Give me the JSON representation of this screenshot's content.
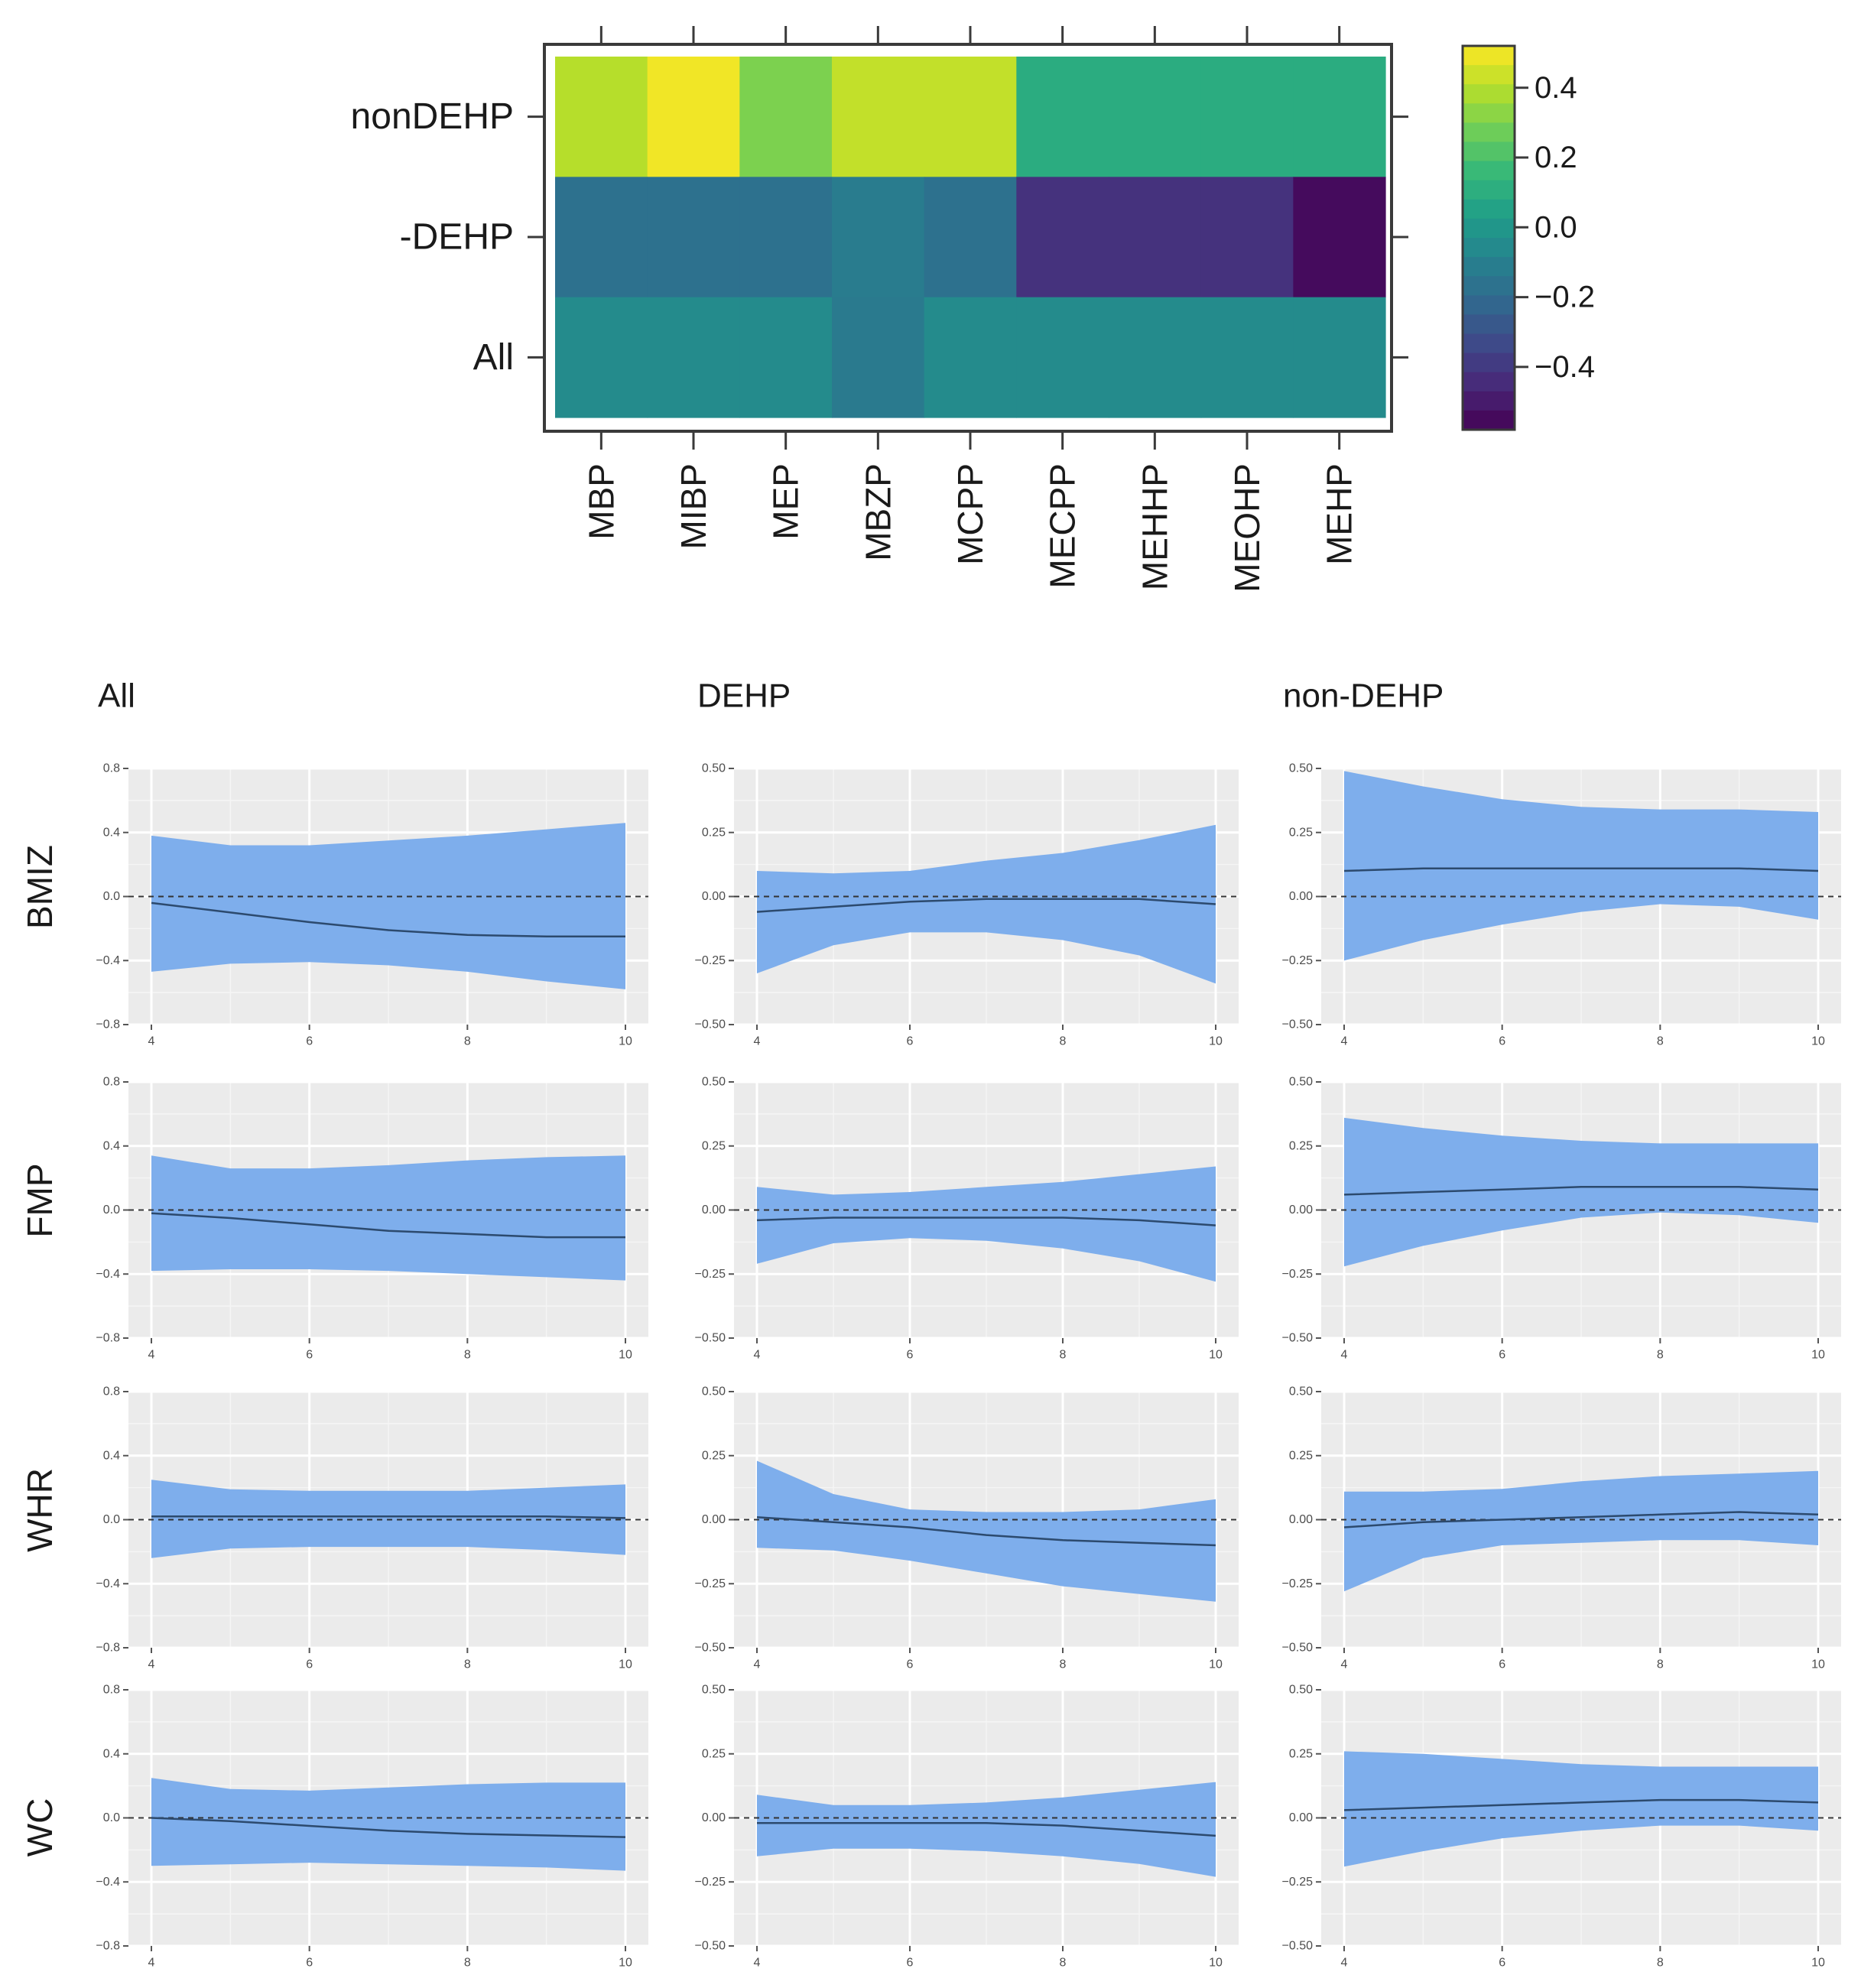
{
  "chart_data": [
    {
      "type": "heatmap",
      "title": "",
      "rows": [
        "nonDEHP",
        "-DEHP",
        "All"
      ],
      "columns": [
        "MBP",
        "MIBP",
        "MEP",
        "MBZP",
        "MCPP",
        "MECPP",
        "MEHHP",
        "MEOHP",
        "MEHP"
      ],
      "values": [
        [
          0.4,
          0.5,
          0.3,
          0.42,
          0.42,
          0.1,
          0.1,
          0.1,
          0.1
        ],
        [
          -0.17,
          -0.17,
          -0.17,
          -0.12,
          -0.17,
          -0.42,
          -0.42,
          -0.42,
          -0.55
        ],
        [
          -0.05,
          -0.05,
          -0.05,
          -0.13,
          -0.05,
          -0.05,
          -0.05,
          -0.05,
          -0.05
        ]
      ],
      "colorbar": {
        "range": [
          -0.58,
          0.52
        ],
        "ticks": [
          0.4,
          0.2,
          0.0,
          -0.2,
          -0.4
        ],
        "tick_labels": [
          "0.4",
          "0.2",
          "0.0",
          "−0.2",
          "−0.4"
        ]
      }
    },
    {
      "type": "area",
      "column_titles": [
        "All",
        "DEHP",
        "non-DEHP"
      ],
      "row_titles": [
        "BMIZ",
        "FMP",
        "WHR",
        "WC"
      ],
      "x_ticks": [
        4,
        6,
        8,
        10
      ],
      "x_tick_labels": [
        "4",
        "6",
        "8",
        "10"
      ],
      "y_axes": [
        {
          "ylim": [
            -0.8,
            0.8
          ],
          "ticks": [
            0.8,
            0.4,
            0.0,
            -0.4,
            -0.8
          ],
          "tick_labels": [
            "0.8",
            "0.4",
            "0.0",
            "−0.4",
            "−0.8"
          ]
        },
        {
          "ylim": [
            -0.5,
            0.5
          ],
          "ticks": [
            0.5,
            0.25,
            0.0,
            -0.25,
            -0.5
          ],
          "tick_labels": [
            "0.50",
            "0.25",
            "0.00",
            "−0.25",
            "−0.50"
          ]
        },
        {
          "ylim": [
            -0.5,
            0.5
          ],
          "ticks": [
            0.5,
            0.25,
            0.0,
            -0.25,
            -0.5
          ],
          "tick_labels": [
            "0.50",
            "0.25",
            "0.00",
            "−0.25",
            "−0.50"
          ]
        }
      ],
      "x": [
        4,
        5,
        6,
        7,
        8,
        9,
        10
      ],
      "panels": [
        [
          {
            "mean": [
              -0.04,
              -0.1,
              -0.16,
              -0.21,
              -0.24,
              -0.25,
              -0.25
            ],
            "upper": [
              0.38,
              0.32,
              0.32,
              0.35,
              0.38,
              0.42,
              0.46
            ],
            "lower": [
              -0.47,
              -0.42,
              -0.41,
              -0.43,
              -0.47,
              -0.53,
              -0.58
            ]
          },
          {
            "mean": [
              -0.06,
              -0.04,
              -0.02,
              -0.01,
              -0.01,
              -0.01,
              -0.03
            ],
            "upper": [
              0.1,
              0.09,
              0.1,
              0.14,
              0.17,
              0.22,
              0.28
            ],
            "lower": [
              -0.3,
              -0.19,
              -0.14,
              -0.14,
              -0.17,
              -0.23,
              -0.34
            ]
          },
          {
            "mean": [
              0.1,
              0.11,
              0.11,
              0.11,
              0.11,
              0.11,
              0.1
            ],
            "upper": [
              0.49,
              0.43,
              0.38,
              0.35,
              0.34,
              0.34,
              0.33
            ],
            "lower": [
              -0.25,
              -0.17,
              -0.11,
              -0.06,
              -0.03,
              -0.04,
              -0.09
            ]
          }
        ],
        [
          {
            "mean": [
              -0.02,
              -0.05,
              -0.09,
              -0.13,
              -0.15,
              -0.17,
              -0.17
            ],
            "upper": [
              0.34,
              0.26,
              0.26,
              0.28,
              0.31,
              0.33,
              0.34
            ],
            "lower": [
              -0.38,
              -0.37,
              -0.37,
              -0.38,
              -0.4,
              -0.42,
              -0.44
            ]
          },
          {
            "mean": [
              -0.04,
              -0.03,
              -0.03,
              -0.03,
              -0.03,
              -0.04,
              -0.06
            ],
            "upper": [
              0.09,
              0.06,
              0.07,
              0.09,
              0.11,
              0.14,
              0.17
            ],
            "lower": [
              -0.21,
              -0.13,
              -0.11,
              -0.12,
              -0.15,
              -0.2,
              -0.28
            ]
          },
          {
            "mean": [
              0.06,
              0.07,
              0.08,
              0.09,
              0.09,
              0.09,
              0.08
            ],
            "upper": [
              0.36,
              0.32,
              0.29,
              0.27,
              0.26,
              0.26,
              0.26
            ],
            "lower": [
              -0.22,
              -0.14,
              -0.08,
              -0.03,
              -0.01,
              -0.02,
              -0.05
            ]
          }
        ],
        [
          {
            "mean": [
              0.02,
              0.02,
              0.02,
              0.02,
              0.02,
              0.02,
              0.01
            ],
            "upper": [
              0.25,
              0.19,
              0.18,
              0.18,
              0.18,
              0.2,
              0.22
            ],
            "lower": [
              -0.24,
              -0.18,
              -0.17,
              -0.17,
              -0.17,
              -0.19,
              -0.22
            ]
          },
          {
            "mean": [
              0.01,
              -0.01,
              -0.03,
              -0.06,
              -0.08,
              -0.09,
              -0.1
            ],
            "upper": [
              0.23,
              0.1,
              0.04,
              0.03,
              0.03,
              0.04,
              0.08
            ],
            "lower": [
              -0.11,
              -0.12,
              -0.16,
              -0.21,
              -0.26,
              -0.29,
              -0.32
            ]
          },
          {
            "mean": [
              -0.03,
              -0.01,
              0.0,
              0.01,
              0.02,
              0.03,
              0.02
            ],
            "upper": [
              0.11,
              0.11,
              0.12,
              0.15,
              0.17,
              0.18,
              0.19
            ],
            "lower": [
              -0.28,
              -0.15,
              -0.1,
              -0.09,
              -0.08,
              -0.08,
              -0.1
            ]
          }
        ],
        [
          {
            "mean": [
              0.0,
              -0.02,
              -0.05,
              -0.08,
              -0.1,
              -0.11,
              -0.12
            ],
            "upper": [
              0.25,
              0.18,
              0.17,
              0.19,
              0.21,
              0.22,
              0.22
            ],
            "lower": [
              -0.3,
              -0.29,
              -0.28,
              -0.29,
              -0.3,
              -0.31,
              -0.33
            ]
          },
          {
            "mean": [
              -0.02,
              -0.02,
              -0.02,
              -0.02,
              -0.03,
              -0.05,
              -0.07
            ],
            "upper": [
              0.09,
              0.05,
              0.05,
              0.06,
              0.08,
              0.11,
              0.14
            ],
            "lower": [
              -0.15,
              -0.12,
              -0.12,
              -0.13,
              -0.15,
              -0.18,
              -0.23
            ]
          },
          {
            "mean": [
              0.03,
              0.04,
              0.05,
              0.06,
              0.07,
              0.07,
              0.06
            ],
            "upper": [
              0.26,
              0.25,
              0.23,
              0.21,
              0.2,
              0.2,
              0.2
            ],
            "lower": [
              -0.19,
              -0.13,
              -0.08,
              -0.05,
              -0.03,
              -0.03,
              -0.05
            ]
          }
        ]
      ],
      "band_color": "#7EAEEC",
      "line_color": "#2c4a6e",
      "panel_background": "#ebebeb"
    }
  ]
}
